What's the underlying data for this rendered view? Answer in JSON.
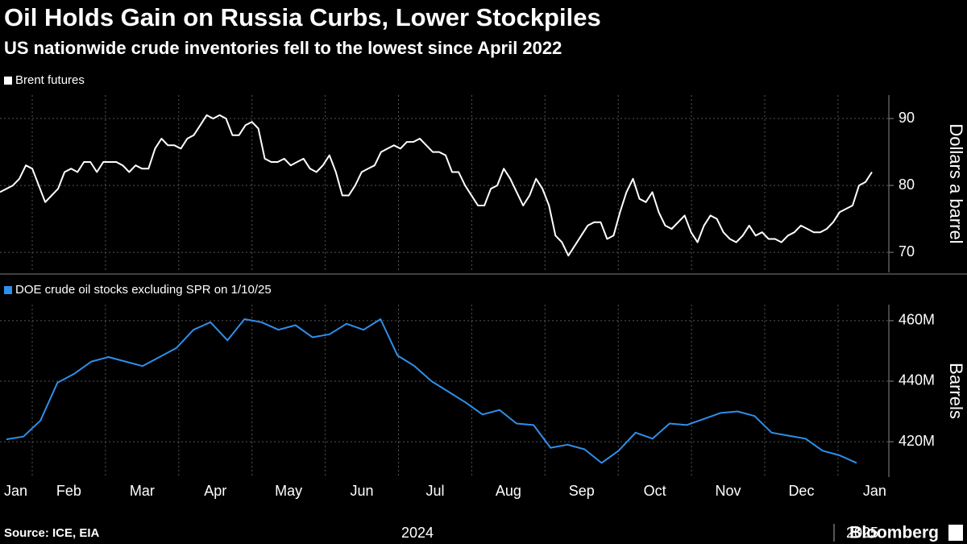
{
  "title": "Oil Holds Gain on Russia Curbs, Lower Stockpiles",
  "subtitle": "US nationwide crude inventories fell to the lowest since April 2022",
  "source": "Source: ICE, EIA",
  "brand": "Bloomberg",
  "x_labels": [
    "Jan",
    "Feb",
    "Mar",
    "Apr",
    "May",
    "Jun",
    "Jul",
    "Aug",
    "Sep",
    "Oct",
    "Nov",
    "Dec",
    "Jan"
  ],
  "x_group_labels": [
    "2024",
    "2025"
  ],
  "chart_data": [
    {
      "type": "line",
      "y_label": "Dollars a barrel",
      "ylim": [
        67,
        93.5
      ],
      "yticks": [
        70,
        80,
        90
      ],
      "grid": true,
      "series": [
        {
          "name": "Brent futures",
          "color": "#ffffff",
          "values": [
            79,
            79.5,
            80,
            81,
            83,
            82.5,
            80,
            77.5,
            78.5,
            79.5,
            82,
            82.5,
            82,
            83.5,
            83.5,
            82,
            83.5,
            83.5,
            83.5,
            83,
            82,
            83,
            82.5,
            82.5,
            85.5,
            87,
            86,
            86,
            85.5,
            87,
            87.5,
            89,
            90.5,
            90,
            90.5,
            90,
            87.5,
            87.5,
            89,
            89.5,
            88.5,
            84,
            83.5,
            83.5,
            84,
            83,
            83.5,
            84,
            82.5,
            82,
            83,
            84.5,
            82,
            78.5,
            78.5,
            80,
            82,
            82.5,
            83,
            85,
            85.5,
            86,
            85.5,
            86.5,
            86.5,
            87,
            86,
            85,
            85,
            84.5,
            82,
            82,
            80,
            78.5,
            77,
            77,
            79.5,
            80,
            82.5,
            81,
            79,
            77,
            78.5,
            81,
            79.5,
            77,
            72.5,
            71.5,
            69.5,
            71,
            72.5,
            74,
            74.5,
            74.5,
            72,
            72.5,
            76,
            79,
            81,
            78,
            77.5,
            79,
            76,
            74,
            73.5,
            74.5,
            75.5,
            73,
            71.5,
            74,
            75.5,
            75,
            73,
            72,
            71.5,
            72.5,
            74,
            72.5,
            73,
            72,
            72,
            71.5,
            72.5,
            73,
            74,
            73.5,
            73,
            73,
            73.5,
            74.5,
            76,
            76.5,
            77,
            80,
            80.5,
            82
          ]
        }
      ]
    },
    {
      "type": "line",
      "y_label": "Barrels",
      "ylim": [
        408300000,
        465300000
      ],
      "yticks": [
        {
          "value": 420000000,
          "label": "420M"
        },
        {
          "value": 440000000,
          "label": "440M"
        },
        {
          "value": 460000000,
          "label": "460M"
        }
      ],
      "grid": true,
      "series": [
        {
          "name": "DOE crude oil stocks excluding SPR on 1/10/25",
          "color": "#2f8fea",
          "values": [
            420800000,
            421700000,
            427000000,
            439500000,
            442500000,
            446500000,
            448000000,
            446500000,
            445000000,
            448000000,
            451000000,
            457000000,
            459500000,
            453500000,
            460500000,
            459500000,
            457000000,
            458500000,
            454500000,
            455500000,
            459000000,
            457000000,
            460500000,
            448500000,
            445000000,
            440000000,
            436500000,
            433000000,
            429000000,
            430500000,
            426000000,
            425500000,
            418000000,
            419000000,
            417500000,
            413000000,
            417000000,
            423000000,
            421000000,
            426000000,
            425500000,
            427500000,
            429500000,
            430000000,
            428500000,
            423000000,
            422000000,
            421000000,
            417000000,
            415500000,
            413000000
          ]
        }
      ]
    }
  ]
}
